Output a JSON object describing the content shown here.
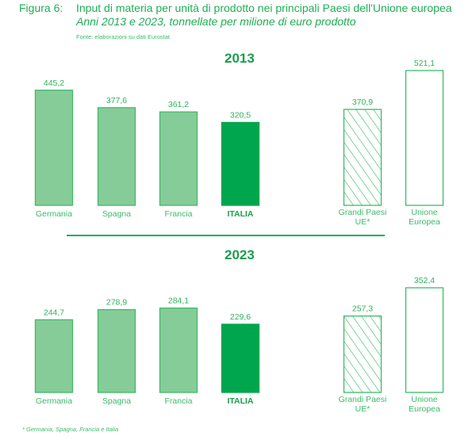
{
  "figure": {
    "label": "Figura 6:",
    "title": "Input di materia per unità di prodotto nei principali Paesi dell'Unione europea",
    "subtitle": "Anni 2013 e 2023, tonnellate per milione di euro prodotto",
    "source": "Fonte: elaborazioni su dati Eurostat",
    "footnote": "*   Germania, Spagna, Francia e Italia"
  },
  "colors": {
    "light_green": "#86cc98",
    "dark_green": "#00a64d",
    "stroke": "#3dbb6a",
    "text": "#3dbb6a"
  },
  "chart_data": [
    {
      "type": "bar",
      "title": "2013",
      "categories": [
        "Germania",
        "Spagna",
        "Francia",
        "ITALIA",
        "Grandi Paesi UE*",
        "Unione Europea"
      ],
      "values": [
        445.2,
        377.6,
        361.2,
        320.5,
        370.9,
        521.1
      ],
      "labels": [
        "445,2",
        "377,6",
        "361,2",
        "320,5",
        "370,9",
        "521,1"
      ],
      "styles": [
        "light",
        "light",
        "light",
        "dark",
        "hatched",
        "outline"
      ],
      "xlabel": "",
      "ylabel": "tonnellate per milione di euro prodotto",
      "ylim": [
        0,
        521.1
      ],
      "grid": false
    },
    {
      "type": "bar",
      "title": "2023",
      "categories": [
        "Germania",
        "Spagna",
        "Francia",
        "ITALIA",
        "Grandi Paesi UE*",
        "Unione Europea"
      ],
      "values": [
        244.7,
        278.9,
        284.1,
        229.6,
        257.3,
        352.4
      ],
      "labels": [
        "244,7",
        "278,9",
        "284,1",
        "229,6",
        "257,3",
        "352,4"
      ],
      "styles": [
        "light",
        "light",
        "light",
        "dark",
        "hatched",
        "outline"
      ],
      "xlabel": "",
      "ylabel": "tonnellate per milione di euro prodotto",
      "ylim": [
        0,
        352.4
      ],
      "grid": false
    }
  ]
}
